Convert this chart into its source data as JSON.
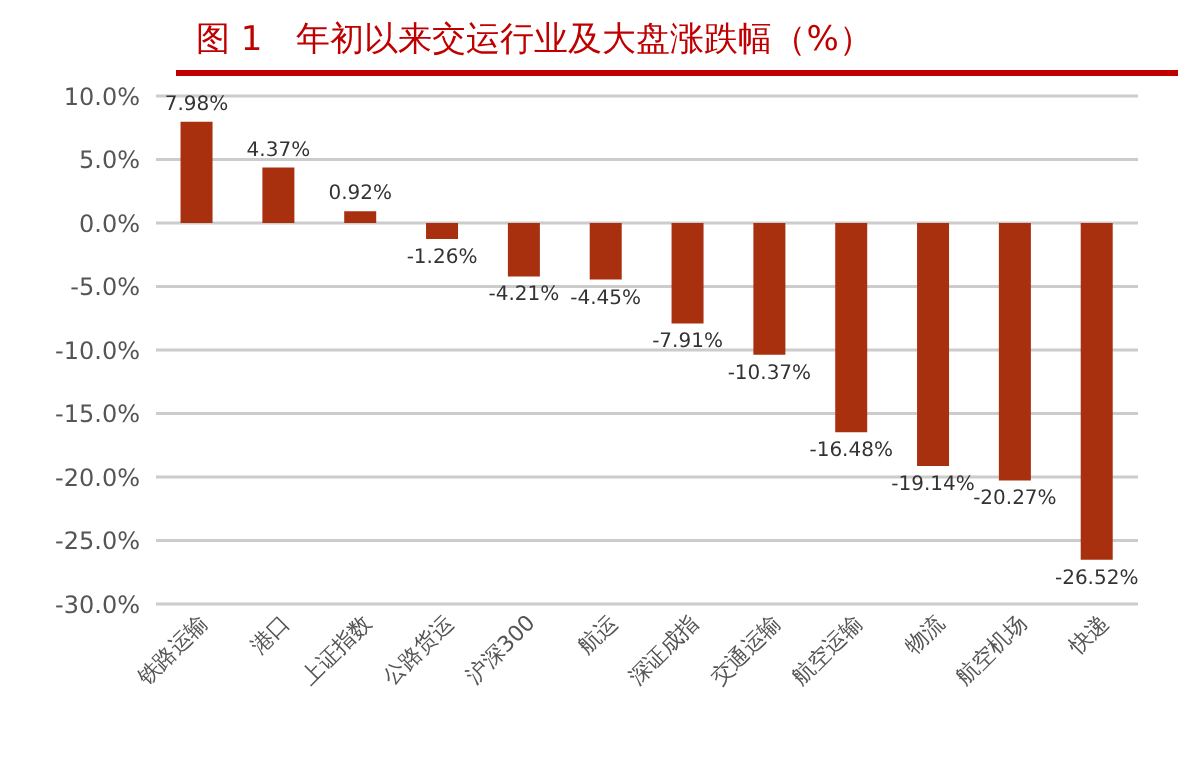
{
  "chart_data": {
    "type": "bar",
    "title": "图 1　年初以来交运行业及大盘涨跌幅（%）",
    "categories": [
      "铁路运输",
      "港口",
      "上证指数",
      "公路货运",
      "沪深300",
      "航运",
      "深证成指",
      "交通运输",
      "航空运输",
      "物流",
      "航空机场",
      "快递"
    ],
    "values": [
      7.98,
      4.37,
      0.92,
      -1.26,
      -4.21,
      -4.45,
      -7.91,
      -10.37,
      -16.48,
      -19.14,
      -20.27,
      -26.52
    ],
    "value_labels": [
      "7.98%",
      "4.37%",
      "0.92%",
      "-1.26%",
      "-4.21%",
      "-4.45%",
      "-7.91%",
      "-10.37%",
      "-16.48%",
      "-19.14%",
      "-20.27%",
      "-26.52%"
    ],
    "color": "#a8300f",
    "ylim": [
      -30,
      10
    ],
    "yticks": [
      {
        "value": -30,
        "label": "-30.0%"
      },
      {
        "value": -25,
        "label": "-25.0%"
      },
      {
        "value": -20,
        "label": "-20.0%"
      },
      {
        "value": -15,
        "label": "-15.0%"
      },
      {
        "value": -10,
        "label": "-10.0%"
      },
      {
        "value": -5,
        "label": "-5.0%"
      },
      {
        "value": 0,
        "label": "0.0%"
      },
      {
        "value": 5,
        "label": "5.0%"
      },
      {
        "value": 10,
        "label": "10.0%"
      }
    ],
    "grid": "y",
    "legend": false
  }
}
